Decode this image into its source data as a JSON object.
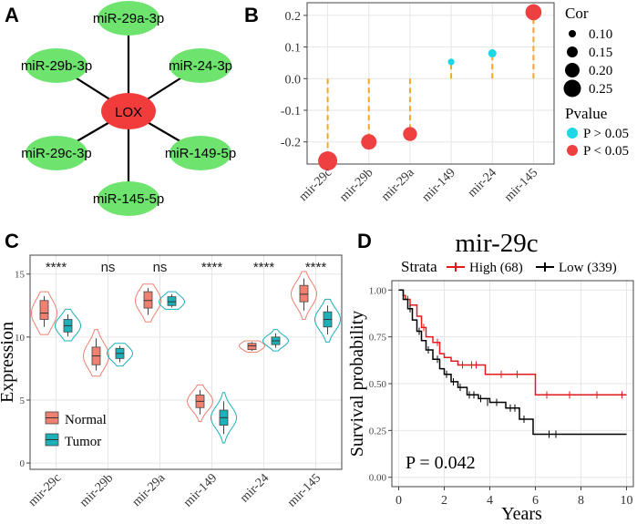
{
  "colors": {
    "mirna_node": "#6ee36e",
    "lox_node": "#f23b3b",
    "cor_line": "#f5a623",
    "p_high": "#1ed6e6",
    "p_low": "#ee4040",
    "normal": "#f08070",
    "tumor": "#1cb0b8",
    "km_high": "#e31a1c",
    "km_low": "#000000",
    "grid": "#e6e6e6"
  },
  "panels": {
    "a": "A",
    "b": "B",
    "c": "C",
    "d": "D"
  },
  "chart_data": [
    {
      "type": "network",
      "panel": "A",
      "center": "LOX",
      "nodes": [
        "miR-29a-3p",
        "miR-24-3p",
        "miR-149-5p",
        "miR-145-5p",
        "miR-29c-3p",
        "miR-29b-3p"
      ]
    },
    {
      "type": "scatter",
      "panel": "B",
      "categories": [
        "mir-29c",
        "mir-29b",
        "mir-29a",
        "mir-149",
        "mir-24",
        "mir-145"
      ],
      "cor": [
        -0.26,
        -0.2,
        -0.175,
        0.053,
        0.08,
        0.21
      ],
      "pvalue_group": [
        "P < 0.05",
        "P < 0.05",
        "P < 0.05",
        "P > 0.05",
        "P > 0.05",
        "P < 0.05"
      ],
      "ylim": [
        -0.27,
        0.24
      ],
      "yticks": [
        "0.2",
        "0.1",
        "0.0",
        "-0.1",
        "-0.2"
      ],
      "yticks_values": [
        0.2,
        0.1,
        0.0,
        -0.1,
        -0.2
      ],
      "legend_size_title": "Cor",
      "legend_size_labels": [
        "0.10",
        "0.15",
        "0.20",
        "0.25"
      ],
      "legend_color_title": "Pvalue",
      "legend_color_labels": [
        "P > 0.05",
        "P < 0.05"
      ]
    },
    {
      "type": "violin",
      "panel": "C",
      "categories": [
        "mir-29c",
        "mir-29b",
        "mir-29a",
        "mir-149",
        "mir-24",
        "mir-145"
      ],
      "ylabel": "Expression",
      "ylim": [
        -0.5,
        16.5
      ],
      "yticks": [
        "15",
        "10",
        "5",
        "0"
      ],
      "yticks_values": [
        15,
        10,
        5,
        0
      ],
      "significance": [
        "****",
        "ns",
        "ns",
        "****",
        "****",
        "****"
      ],
      "legend": [
        "Normal",
        "Tumor"
      ],
      "normal": [
        {
          "min": 10.2,
          "q1": 11.4,
          "median": 11.9,
          "q3": 12.9,
          "max": 13.6
        },
        {
          "min": 6.9,
          "q1": 7.8,
          "median": 8.5,
          "q3": 9.2,
          "max": 10.6
        },
        {
          "min": 11.2,
          "q1": 12.3,
          "median": 12.9,
          "q3": 13.6,
          "max": 14.2
        },
        {
          "min": 3.3,
          "q1": 4.4,
          "median": 4.9,
          "q3": 5.4,
          "max": 6.2
        },
        {
          "min": 8.8,
          "q1": 9.0,
          "median": 9.3,
          "q3": 9.5,
          "max": 9.7
        },
        {
          "min": 11.4,
          "q1": 12.8,
          "median": 13.4,
          "q3": 14.1,
          "max": 15.2
        }
      ],
      "tumor": [
        {
          "min": 9.7,
          "q1": 10.4,
          "median": 10.9,
          "q3": 11.4,
          "max": 12.2
        },
        {
          "min": 7.7,
          "q1": 8.3,
          "median": 8.7,
          "q3": 9.1,
          "max": 9.5
        },
        {
          "min": 12.2,
          "q1": 12.5,
          "median": 12.8,
          "q3": 13.2,
          "max": 13.6
        },
        {
          "min": 1.6,
          "q1": 3.0,
          "median": 3.6,
          "q3": 4.2,
          "max": 5.6
        },
        {
          "min": 8.9,
          "q1": 9.4,
          "median": 9.7,
          "q3": 10.0,
          "max": 10.6
        },
        {
          "min": 9.6,
          "q1": 10.8,
          "median": 11.4,
          "q3": 12.0,
          "max": 13.0
        }
      ]
    },
    {
      "type": "line",
      "panel": "D",
      "title": "mir-29c",
      "xlabel": "Years",
      "ylabel": "Survival probability",
      "xlim": [
        -0.3,
        10.3
      ],
      "ylim": [
        -0.05,
        1.05
      ],
      "xticks": [
        "0",
        "2",
        "4",
        "6",
        "8",
        "10"
      ],
      "xticks_values": [
        0,
        2,
        4,
        6,
        8,
        10
      ],
      "yticks": [
        "1.00",
        "0.75",
        "0.50",
        "0.25",
        "0.00"
      ],
      "yticks_values": [
        1.0,
        0.75,
        0.5,
        0.25,
        0.0
      ],
      "legend_title": "Strata",
      "legend": [
        "High (68)",
        "Low (339)"
      ],
      "pvalue": "P = 0.042",
      "series": [
        {
          "name": "High (68)",
          "x": [
            0,
            0.2,
            0.3,
            0.5,
            0.8,
            1.0,
            1.2,
            1.5,
            1.8,
            2.0,
            2.3,
            2.6,
            3.8,
            6.0,
            10.0
          ],
          "y": [
            1.0,
            0.97,
            0.95,
            0.92,
            0.86,
            0.8,
            0.75,
            0.72,
            0.66,
            0.64,
            0.62,
            0.6,
            0.55,
            0.44,
            0.44
          ],
          "censor_x": [
            0.4,
            1.1,
            1.7,
            2.8,
            3.2,
            3.4,
            4.5,
            5.2,
            6.5,
            7.5,
            8.7,
            9.8
          ],
          "censor_y": [
            0.95,
            0.8,
            0.72,
            0.6,
            0.6,
            0.6,
            0.55,
            0.55,
            0.44,
            0.44,
            0.44,
            0.44
          ]
        },
        {
          "name": "Low (339)",
          "x": [
            0,
            0.2,
            0.4,
            0.6,
            0.8,
            1.0,
            1.2,
            1.5,
            1.8,
            2.0,
            2.3,
            2.6,
            3.0,
            3.5,
            4.0,
            4.7,
            5.3,
            5.9,
            10.0
          ],
          "y": [
            1.0,
            0.95,
            0.9,
            0.84,
            0.78,
            0.73,
            0.68,
            0.63,
            0.58,
            0.55,
            0.51,
            0.48,
            0.44,
            0.42,
            0.4,
            0.37,
            0.31,
            0.23,
            0.23
          ],
          "censor_x": [
            0.5,
            0.9,
            1.3,
            1.7,
            2.1,
            2.4,
            2.7,
            3.1,
            3.3,
            3.6,
            3.9,
            4.3,
            4.9,
            5.1,
            5.5,
            6.6,
            6.9
          ],
          "censor_y": [
            0.9,
            0.78,
            0.68,
            0.63,
            0.55,
            0.51,
            0.48,
            0.44,
            0.44,
            0.42,
            0.4,
            0.4,
            0.37,
            0.37,
            0.31,
            0.23,
            0.23
          ]
        }
      ]
    }
  ]
}
